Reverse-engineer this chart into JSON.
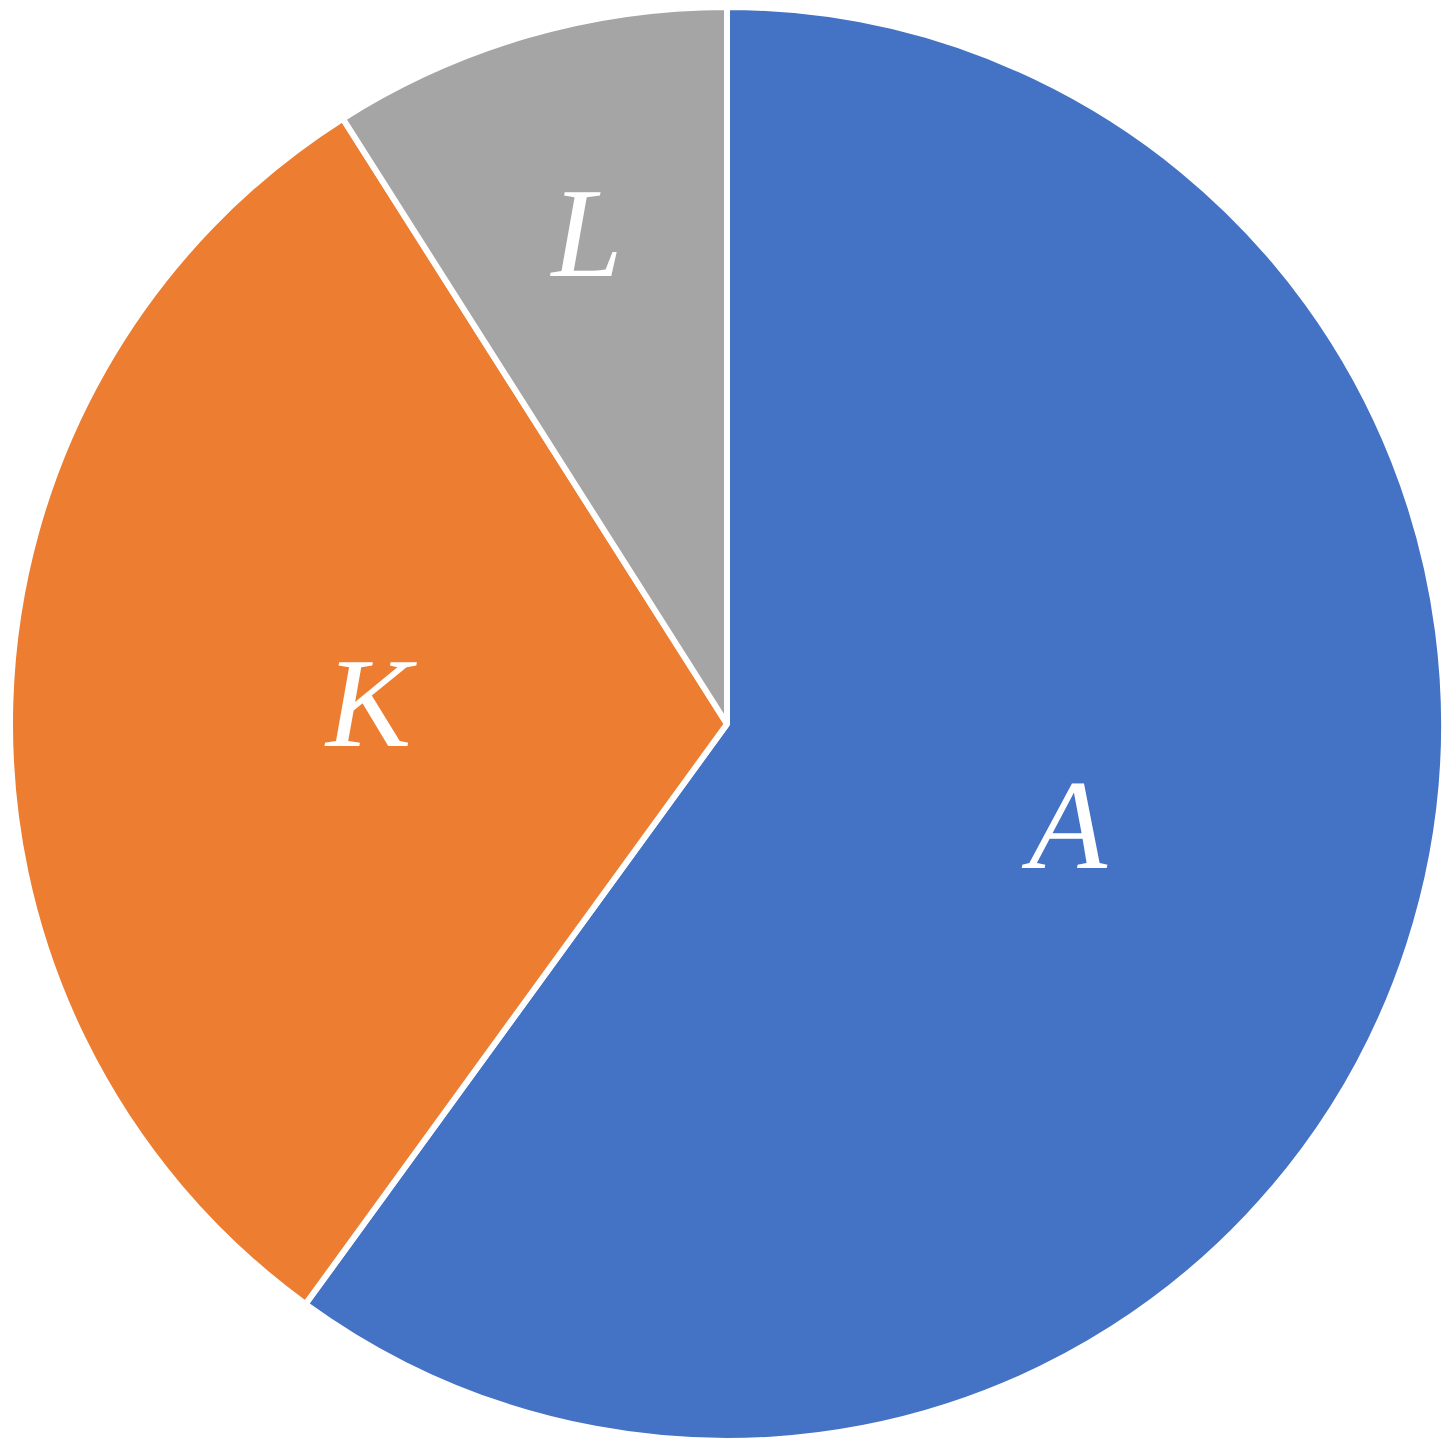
{
  "chart_data": {
    "type": "pie",
    "categories": [
      "A",
      "K",
      "L"
    ],
    "values": [
      60,
      31,
      9
    ],
    "colors": [
      "#4472c4",
      "#ed7d31",
      "#a5a5a5"
    ],
    "legend": false
  }
}
